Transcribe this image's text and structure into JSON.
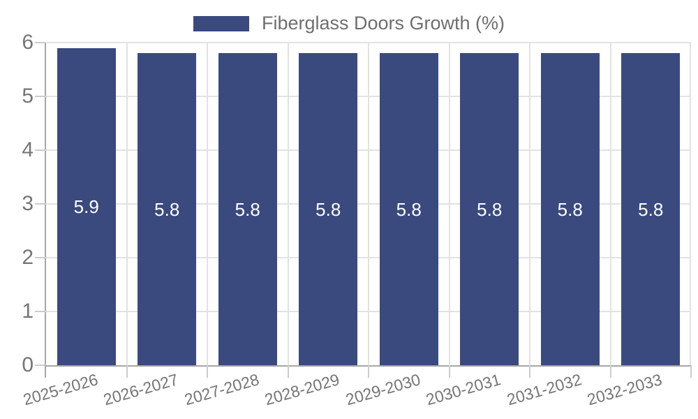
{
  "chart_data": {
    "type": "bar",
    "title": "",
    "legend": {
      "label": "Fiberglass Doors Growth (%)",
      "position": "top-center"
    },
    "categories": [
      "2025-2026",
      "2026-2027",
      "2027-2028",
      "2028-2029",
      "2029-2030",
      "2030-2031",
      "2031-2032",
      "2032-2033"
    ],
    "values": [
      5.9,
      5.8,
      5.8,
      5.8,
      5.8,
      5.8,
      5.8,
      5.8
    ],
    "xlabel": "",
    "ylabel": "",
    "ylim": [
      0,
      6
    ],
    "yticks": [
      0,
      1,
      2,
      3,
      4,
      5,
      6
    ],
    "grid": true,
    "bar_width_fraction": 0.73,
    "colors": {
      "bar": "#3A4A7F",
      "grid": "#e2e2e2",
      "axis": "#a6a6a6",
      "tick_mark": "#cccccc",
      "tick_label": "#757575",
      "value_label": "#ffffff",
      "legend_text": "#6e6e6e"
    }
  }
}
